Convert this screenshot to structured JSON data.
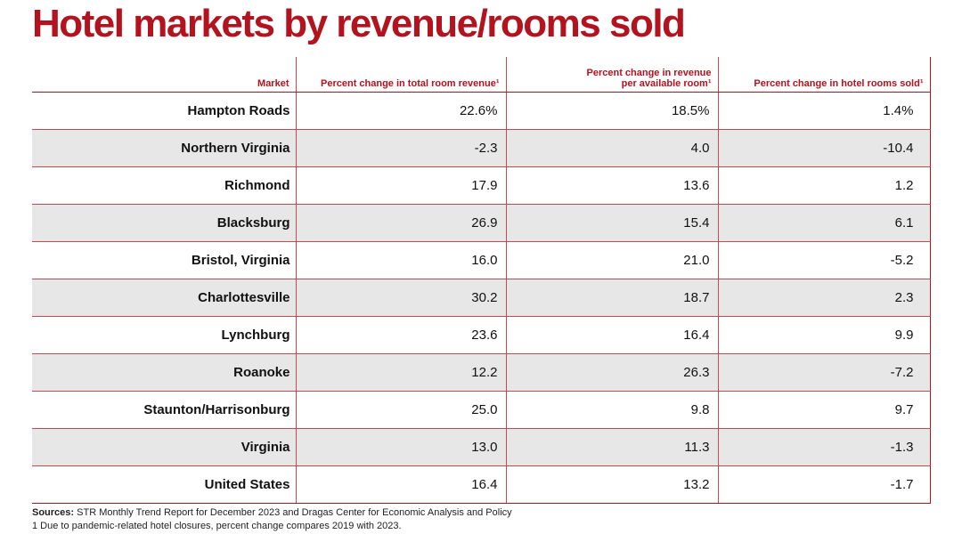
{
  "title": "Hotel markets by revenue/rooms sold",
  "chart_data": {
    "type": "table",
    "columns": [
      "Market",
      "Percent change in total room revenue¹",
      "Percent change in revenue per available room¹",
      "Percent change in hotel rooms sold¹"
    ],
    "rows": [
      [
        "Hampton Roads",
        "22.6%",
        "18.5%",
        "1.4%"
      ],
      [
        "Northern Virginia",
        "-2.3",
        "4.0",
        "-10.4"
      ],
      [
        "Richmond",
        "17.9",
        "13.6",
        "1.2"
      ],
      [
        "Blacksburg",
        "26.9",
        "15.4",
        "6.1"
      ],
      [
        "Bristol, Virginia",
        "16.0",
        "21.0",
        "-5.2"
      ],
      [
        "Charlottesville",
        "30.2",
        "18.7",
        "2.3"
      ],
      [
        "Lynchburg",
        "23.6",
        "16.4",
        "9.9"
      ],
      [
        "Roanoke",
        "12.2",
        "26.3",
        "-7.2"
      ],
      [
        "Staunton/Harrisonburg",
        "25.0",
        "9.8",
        "9.7"
      ],
      [
        "Virginia",
        "13.0",
        "11.3",
        "-1.3"
      ],
      [
        "United States",
        "16.4",
        "13.2",
        "-1.7"
      ]
    ],
    "title": "Hotel markets by revenue/rooms sold"
  },
  "footer": {
    "sources_label": "Sources:",
    "sources_text": " STR Monthly Trend Report for December 2023 and Dragas Center for Economic Analysis and Policy",
    "footnote": "1 Due to pandemic-related hotel closures, percent change compares 2019 with 2023."
  },
  "colors": {
    "accent": "#b3121f",
    "row_alt": "#e7e7e8"
  }
}
